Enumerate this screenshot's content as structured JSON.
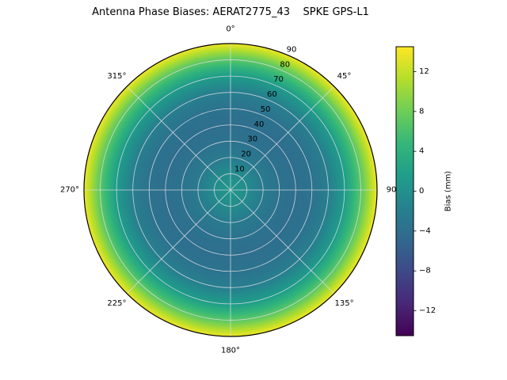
{
  "title": "Antenna Phase Biases: AERAT2775_43    SPKE GPS-L1",
  "chart_data": {
    "type": "heatmap",
    "projection": "polar",
    "title": "Antenna Phase Biases: AERAT2775_43    SPKE GPS-L1",
    "description": "Azimuthally symmetric antenna phase bias pattern vs zenith angle, viridis colormap",
    "angular_ticks": [
      {
        "deg": 0,
        "label": "0°"
      },
      {
        "deg": 45,
        "label": "45°"
      },
      {
        "deg": 90,
        "label": "90"
      },
      {
        "deg": 135,
        "label": "135°"
      },
      {
        "deg": 180,
        "label": "180°"
      },
      {
        "deg": 225,
        "label": "225°"
      },
      {
        "deg": 270,
        "label": "270°"
      },
      {
        "deg": 315,
        "label": "315°"
      }
    ],
    "radial_ticks": [
      {
        "value": 10,
        "label": "10"
      },
      {
        "value": 20,
        "label": "20"
      },
      {
        "value": 30,
        "label": "30"
      },
      {
        "value": 40,
        "label": "40"
      },
      {
        "value": 50,
        "label": "50"
      },
      {
        "value": 60,
        "label": "60"
      },
      {
        "value": 70,
        "label": "70"
      },
      {
        "value": 80,
        "label": "80"
      },
      {
        "value": 90,
        "label": "90"
      }
    ],
    "radial_axis_max": 90,
    "radial_label_angle_deg": 23.5,
    "radial_profile": {
      "zenith_deg": [
        0,
        10,
        20,
        30,
        40,
        50,
        60,
        70,
        80,
        85,
        90
      ],
      "bias_mm": [
        1.0,
        -0.5,
        -2.5,
        -3.5,
        -4.0,
        -3.5,
        -2.0,
        1.5,
        7.0,
        10.5,
        14.0
      ]
    },
    "colorbar": {
      "label": "Bias (mm)",
      "vmin": -14.5,
      "vmax": 14.5,
      "colormap": "viridis",
      "ticks": [
        {
          "value": 12,
          "label": "12"
        },
        {
          "value": 8,
          "label": "8"
        },
        {
          "value": 4,
          "label": "4"
        },
        {
          "value": 0,
          "label": "0"
        },
        {
          "value": -4,
          "label": "−4"
        },
        {
          "value": -8,
          "label": "−8"
        },
        {
          "value": -12,
          "label": "−12"
        }
      ]
    }
  },
  "colors": {
    "viridis_stops": [
      "#440154",
      "#482878",
      "#3e4989",
      "#31688e",
      "#26828e",
      "#1f9e89",
      "#35b779",
      "#6ece58",
      "#b5de2b",
      "#fde725"
    ],
    "grid": "#dcdce6",
    "outline": "#000000",
    "text": "#000000",
    "background": "#ffffff"
  }
}
